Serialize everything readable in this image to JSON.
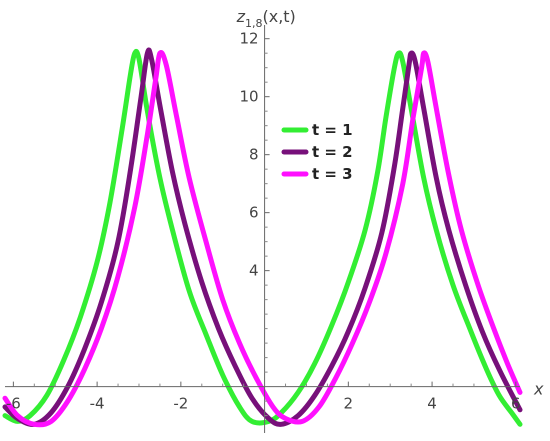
{
  "chart_data": {
    "type": "line",
    "ylabel": "z",
    "ylabel_sub": "1,8",
    "ylabel_args": "(x,t)",
    "xlabel": "x",
    "xlim": [
      -6.2,
      6.1
    ],
    "ylim": [
      -1.6,
      12.3
    ],
    "x_ticks": [
      -6,
      -4,
      -2,
      2,
      4,
      6
    ],
    "x_tick_labels": [
      "-6",
      "-4",
      "-2",
      "2",
      "4",
      "6"
    ],
    "y_ticks": [
      4,
      6,
      8,
      10,
      12
    ],
    "y_tick_labels": [
      "4",
      "6",
      "8",
      "10",
      "12"
    ],
    "grid": false,
    "legend_position": "upper-middle",
    "series": [
      {
        "name": "t = 1",
        "color": "#33ee33",
        "peaks_x": [
          -3.1,
          3.2
        ],
        "x": [
          -6.2,
          -5.9,
          -5.6,
          -5.2,
          -4.8,
          -4.4,
          -4.0,
          -3.7,
          -3.4,
          -3.2,
          -3.1,
          -3.0,
          -2.8,
          -2.5,
          -2.2,
          -1.8,
          -1.4,
          -1.0,
          -0.6,
          -0.3,
          0.1,
          0.4,
          0.8,
          1.2,
          1.6,
          2.0,
          2.4,
          2.7,
          2.9,
          3.1,
          3.2,
          3.3,
          3.5,
          3.8,
          4.1,
          4.5,
          4.9,
          5.3,
          5.6,
          5.9,
          6.1
        ],
        "values": [
          -1.0,
          -1.2,
          -1.0,
          -0.3,
          0.9,
          2.4,
          4.3,
          6.3,
          8.9,
          10.8,
          11.5,
          11.3,
          9.5,
          7.2,
          5.4,
          3.3,
          1.8,
          0.4,
          -0.7,
          -1.2,
          -1.2,
          -0.9,
          -0.2,
          0.8,
          2.1,
          3.6,
          5.4,
          7.4,
          9.3,
          11.0,
          11.5,
          11.2,
          9.6,
          7.2,
          5.4,
          3.5,
          2.0,
          0.6,
          -0.3,
          -0.9,
          -1.3
        ]
      },
      {
        "name": "t = 2",
        "color": "#77107a",
        "peaks_x": [
          -2.8,
          3.5
        ],
        "x": [
          -6.2,
          -5.9,
          -5.5,
          -5.1,
          -4.7,
          -4.3,
          -3.9,
          -3.5,
          -3.2,
          -2.95,
          -2.8,
          -2.7,
          -2.5,
          -2.2,
          -1.9,
          -1.5,
          -1.1,
          -0.7,
          -0.3,
          0.1,
          0.4,
          0.8,
          1.2,
          1.6,
          2.0,
          2.4,
          2.8,
          3.1,
          3.3,
          3.45,
          3.5,
          3.6,
          3.8,
          4.1,
          4.4,
          4.8,
          5.2,
          5.6,
          6.1
        ],
        "values": [
          -0.7,
          -1.1,
          -1.3,
          -0.9,
          0.0,
          1.3,
          2.9,
          5.0,
          7.5,
          10.0,
          11.5,
          11.3,
          9.7,
          7.4,
          5.6,
          3.6,
          2.0,
          0.7,
          -0.4,
          -1.1,
          -1.3,
          -1.0,
          -0.3,
          0.7,
          1.9,
          3.4,
          5.3,
          7.6,
          9.6,
          11.1,
          11.5,
          11.2,
          9.6,
          7.2,
          5.4,
          3.5,
          1.9,
          0.6,
          -0.8
        ]
      },
      {
        "name": "t = 3",
        "color": "#ff10ff",
        "peaks_x": [
          -2.5,
          3.8
        ],
        "x": [
          -6.2,
          -5.9,
          -5.5,
          -5.1,
          -4.7,
          -4.3,
          -3.9,
          -3.5,
          -3.1,
          -2.8,
          -2.6,
          -2.5,
          -2.35,
          -2.1,
          -1.8,
          -1.4,
          -1.0,
          -0.6,
          -0.2,
          0.2,
          0.5,
          0.9,
          1.3,
          1.7,
          2.1,
          2.5,
          2.9,
          3.3,
          3.55,
          3.75,
          3.8,
          3.9,
          4.1,
          4.4,
          4.7,
          5.1,
          5.5,
          5.8,
          6.1
        ],
        "values": [
          -0.4,
          -1.0,
          -1.3,
          -1.2,
          -0.5,
          0.6,
          2.0,
          3.8,
          6.2,
          8.7,
          10.6,
          11.5,
          11.1,
          9.3,
          7.2,
          5.0,
          3.0,
          1.5,
          0.3,
          -0.7,
          -1.1,
          -1.2,
          -0.7,
          0.3,
          1.5,
          2.9,
          4.6,
          7.0,
          9.3,
          11.0,
          11.5,
          11.2,
          9.6,
          7.3,
          5.4,
          3.5,
          1.9,
          0.8,
          -0.2
        ]
      }
    ]
  }
}
